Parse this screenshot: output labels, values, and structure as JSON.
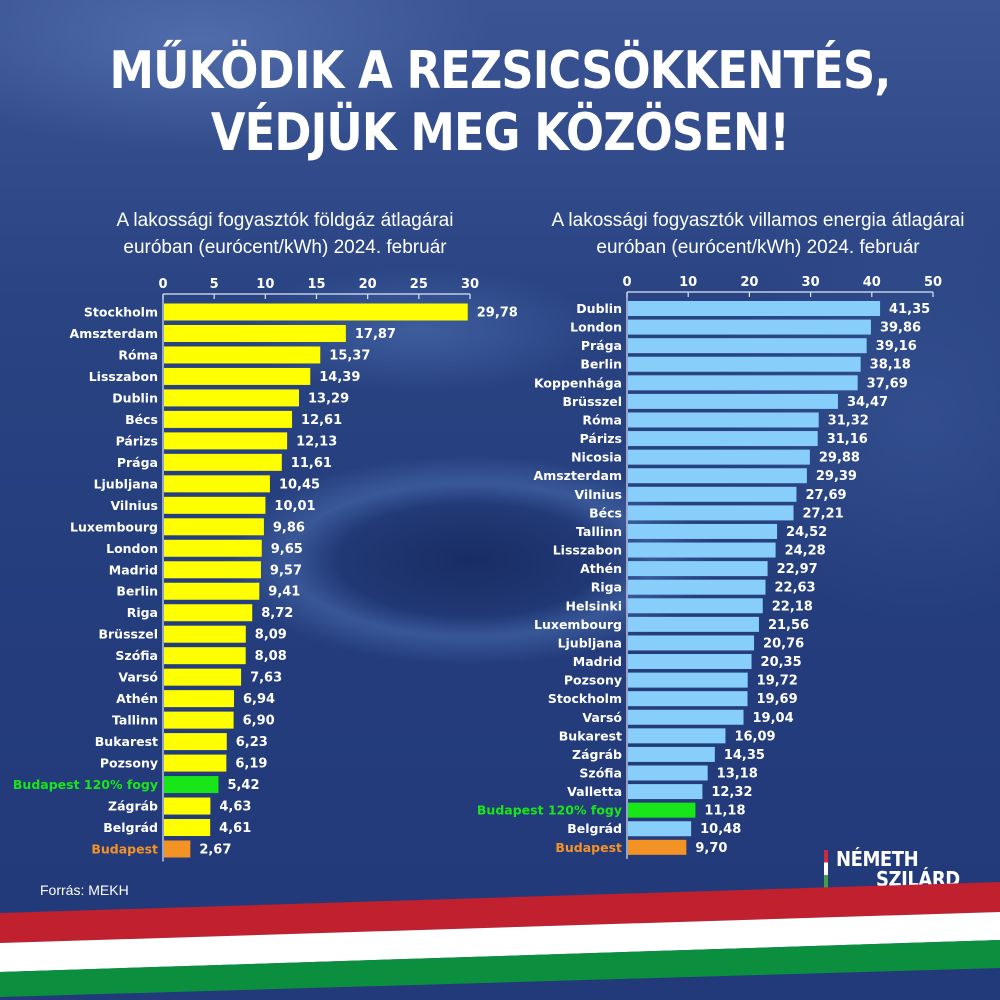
{
  "header": {
    "title_line1": "MŰKÖDIK A REZSICSÖKKENTÉS,",
    "title_line2": "VÉDJÜK MEG KÖZÖSEN!"
  },
  "footer": {
    "source": "Forrás: MEKH",
    "logo_line1": "NÉMETH",
    "logo_line2": "SZILÁRD"
  },
  "colors": {
    "gas_bar": "#ffff00",
    "electricity_bar": "#87cefa",
    "highlight_green": "#19e619",
    "highlight_orange": "#f39325",
    "flag_red": "#c1202f",
    "flag_white": "#ffffff",
    "flag_green": "#0b8f3f"
  },
  "chart_data": [
    {
      "type": "bar",
      "orientation": "horizontal",
      "title_line1": "A lakossági fogyasztók földgáz átlagárai",
      "title_line2": "euróban (eurócent/kWh) 2024. február",
      "xlim": [
        0,
        30
      ],
      "ticks": [
        "0",
        "5",
        "10",
        "15",
        "20",
        "25",
        "30"
      ],
      "tick_values": [
        0,
        5,
        10,
        15,
        20,
        25,
        30
      ],
      "categories": [
        "Stockholm",
        "Amszterdam",
        "Róma",
        "Lisszabon",
        "Dublin",
        "Bécs",
        "Párizs",
        "Prága",
        "Ljubljana",
        "Vilnius",
        "Luxembourg",
        "London",
        "Madrid",
        "Berlin",
        "Riga",
        "Brüsszel",
        "Szófia",
        "Varsó",
        "Athén",
        "Tallinn",
        "Bukarest",
        "Pozsony",
        "Budapest 120% fogy",
        "Zágráb",
        "Belgrád",
        "Budapest"
      ],
      "values": [
        29.78,
        17.87,
        15.37,
        14.39,
        13.29,
        12.61,
        12.13,
        11.61,
        10.45,
        10.01,
        9.86,
        9.65,
        9.57,
        9.41,
        8.72,
        8.09,
        8.08,
        7.63,
        6.94,
        6.9,
        6.23,
        6.19,
        5.42,
        4.63,
        4.61,
        2.67
      ],
      "labels": [
        "29,78",
        "17,87",
        "15,37",
        "14,39",
        "13,29",
        "12,61",
        "12,13",
        "11,61",
        "10,45",
        "10,01",
        "9,86",
        "9,65",
        "9,57",
        "9,41",
        "8,72",
        "8,09",
        "8,08",
        "7,63",
        "6,94",
        "6,90",
        "6,23",
        "6,19",
        "5,42",
        "4,63",
        "4,61",
        "2,67"
      ],
      "highlight": {
        "Budapest 120% fogy": "green",
        "Budapest": "orange"
      }
    },
    {
      "type": "bar",
      "orientation": "horizontal",
      "title_line1": "A lakossági fogyasztók villamos energia átlagárai",
      "title_line2": "euróban (eurócent/kWh) 2024. február",
      "xlim": [
        0,
        50
      ],
      "ticks": [
        "0",
        "10",
        "20",
        "30",
        "40",
        "50"
      ],
      "tick_values": [
        0,
        10,
        20,
        30,
        40,
        50
      ],
      "categories": [
        "Dublin",
        "London",
        "Prága",
        "Berlin",
        "Koppenhága",
        "Brüsszel",
        "Róma",
        "Párizs",
        "Nicosia",
        "Amszterdam",
        "Vilnius",
        "Bécs",
        "Tallinn",
        "Lisszabon",
        "Athén",
        "Riga",
        "Helsinki",
        "Luxembourg",
        "Ljubljana",
        "Madrid",
        "Pozsony",
        "Stockholm",
        "Varsó",
        "Bukarest",
        "Zágráb",
        "Szófia",
        "Valletta",
        "Budapest 120% fogy",
        "Belgrád",
        "Budapest"
      ],
      "values": [
        41.35,
        39.86,
        39.16,
        38.18,
        37.69,
        34.47,
        31.32,
        31.16,
        29.88,
        29.39,
        27.69,
        27.21,
        24.52,
        24.28,
        22.97,
        22.63,
        22.18,
        21.56,
        20.76,
        20.35,
        19.72,
        19.69,
        19.04,
        16.09,
        14.35,
        13.18,
        12.32,
        11.18,
        10.48,
        9.7
      ],
      "labels": [
        "41,35",
        "39,86",
        "39,16",
        "38,18",
        "37,69",
        "34,47",
        "31,32",
        "31,16",
        "29,88",
        "29,39",
        "27,69",
        "27,21",
        "24,52",
        "24,28",
        "22,97",
        "22,63",
        "22,18",
        "21,56",
        "20,76",
        "20,35",
        "19,72",
        "19,69",
        "19,04",
        "16,09",
        "14,35",
        "13,18",
        "12,32",
        "11,18",
        "10,48",
        "9,70"
      ],
      "highlight": {
        "Budapest 120% fogy": "green",
        "Budapest": "orange"
      }
    }
  ]
}
